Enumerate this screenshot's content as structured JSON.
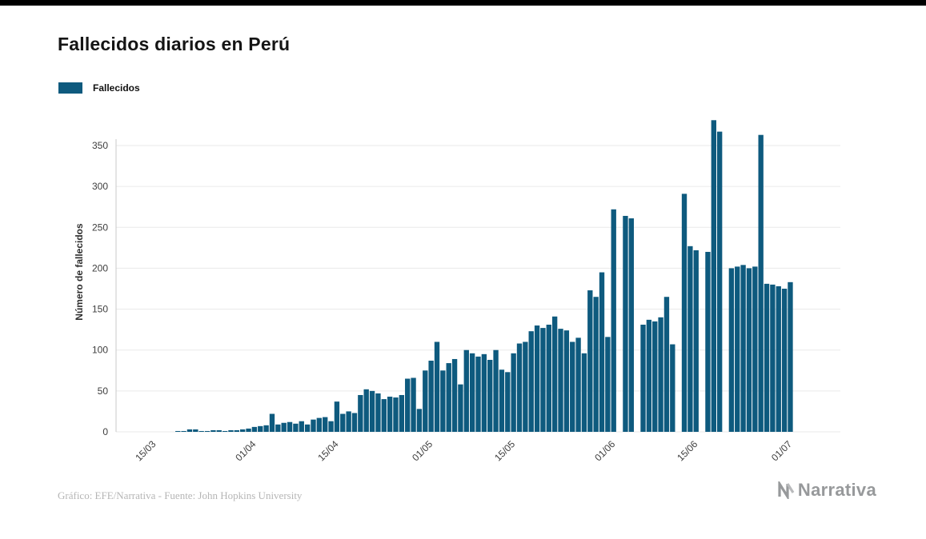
{
  "footer": {
    "credit": "Gráfico: EFE/Narrativa - Fuente: John Hopkins University",
    "brand": "Narrativa"
  },
  "colors": {
    "bar": "#0e5a7e",
    "grid": "#eaeaea",
    "axis_line": "#c9c9c9",
    "tick_text": "#3d3d3d",
    "brand_gray": "#97999b"
  },
  "chart_data": {
    "type": "bar",
    "title": "Fallecidos diarios en Perú",
    "series_name": "Fallecidos",
    "xlabel": "",
    "ylabel": "Número de fallecidos",
    "legend_position": "top-left",
    "grid": "horizontal",
    "ylim": [
      0,
      390
    ],
    "y_ticks": [
      0,
      50,
      100,
      150,
      200,
      250,
      300,
      350
    ],
    "x_tick_labels": [
      "15/03",
      "01/04",
      "15/04",
      "01/05",
      "15/05",
      "01/06",
      "15/06",
      "01/07"
    ],
    "x_tick_indices": [
      6,
      23,
      37,
      53,
      67,
      84,
      98,
      114
    ],
    "x": [
      "09/03",
      "10/03",
      "11/03",
      "12/03",
      "13/03",
      "14/03",
      "15/03",
      "16/03",
      "17/03",
      "18/03",
      "19/03",
      "20/03",
      "21/03",
      "22/03",
      "23/03",
      "24/03",
      "25/03",
      "26/03",
      "27/03",
      "28/03",
      "29/03",
      "30/03",
      "31/03",
      "01/04",
      "02/04",
      "03/04",
      "04/04",
      "05/04",
      "06/04",
      "07/04",
      "08/04",
      "09/04",
      "10/04",
      "11/04",
      "12/04",
      "13/04",
      "14/04",
      "15/04",
      "16/04",
      "17/04",
      "18/04",
      "19/04",
      "20/04",
      "21/04",
      "22/04",
      "23/04",
      "24/04",
      "25/04",
      "26/04",
      "27/04",
      "28/04",
      "29/04",
      "30/04",
      "01/05",
      "02/05",
      "03/05",
      "04/05",
      "05/05",
      "06/05",
      "07/05",
      "08/05",
      "09/05",
      "10/05",
      "11/05",
      "12/05",
      "13/05",
      "14/05",
      "15/05",
      "16/05",
      "17/05",
      "18/05",
      "19/05",
      "20/05",
      "21/05",
      "22/05",
      "23/05",
      "24/05",
      "25/05",
      "26/05",
      "27/05",
      "28/05",
      "29/05",
      "30/05",
      "31/05",
      "01/06",
      "02/06",
      "03/06",
      "04/06",
      "05/06",
      "06/06",
      "07/06",
      "08/06",
      "09/06",
      "10/06",
      "11/06",
      "12/06",
      "13/06",
      "14/06",
      "15/06",
      "16/06",
      "17/06",
      "18/06",
      "19/06",
      "20/06",
      "21/06",
      "22/06",
      "23/06",
      "24/06",
      "25/06",
      "26/06",
      "27/06",
      "28/06",
      "29/06",
      "30/06",
      "01/07"
    ],
    "values": [
      0,
      0,
      0,
      0,
      0,
      0,
      0,
      0,
      0,
      0,
      1,
      1,
      3,
      3,
      1,
      1,
      2,
      2,
      1,
      2,
      2,
      3,
      4,
      6,
      7,
      8,
      22,
      9,
      11,
      12,
      10,
      13,
      9,
      15,
      17,
      18,
      13,
      37,
      22,
      25,
      23,
      45,
      52,
      50,
      47,
      40,
      43,
      42,
      45,
      65,
      66,
      28,
      75,
      87,
      110,
      75,
      84,
      89,
      58,
      100,
      96,
      92,
      95,
      88,
      100,
      76,
      73,
      96,
      108,
      110,
      123,
      130,
      127,
      131,
      141,
      126,
      124,
      110,
      115,
      96,
      173,
      165,
      195,
      116,
      272,
      0,
      264,
      261,
      0,
      131,
      137,
      135,
      140,
      165,
      107,
      0,
      291,
      227,
      222,
      0,
      220,
      381,
      367,
      0,
      200,
      202,
      204,
      200,
      202,
      363,
      181,
      180,
      178,
      175,
      183
    ]
  }
}
